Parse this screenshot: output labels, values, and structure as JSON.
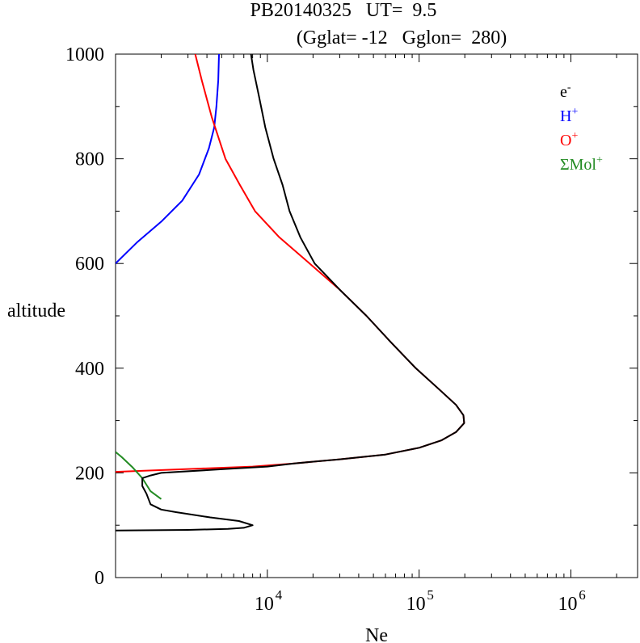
{
  "chart_data": {
    "type": "line",
    "title": "PB20140325   UT=  9.5",
    "subtitle": "(Gglat= -12   Gglon=  280)",
    "xlabel": "Ne",
    "ylabel": "altitude",
    "x_scale": "log",
    "xlim": [
      1000,
      2750000
    ],
    "ylim": [
      0,
      1000
    ],
    "y_ticks": [
      0,
      200,
      400,
      600,
      800,
      1000
    ],
    "x_ticks": [
      {
        "value": 10000,
        "base": "10",
        "exp": "4"
      },
      {
        "value": 100000,
        "base": "10",
        "exp": "5"
      },
      {
        "value": 1000000,
        "base": "10",
        "exp": "6"
      }
    ],
    "legend_placement": "top-right",
    "legend": [
      {
        "base": "e",
        "sup": "-",
        "color": "#000000"
      },
      {
        "base": "H",
        "sup": "+",
        "color": "#0000ff"
      },
      {
        "base": "O",
        "sup": "+",
        "color": "#ff0000"
      },
      {
        "base": "ΣMol",
        "sup": "+",
        "color": "#228B22"
      }
    ],
    "series": [
      {
        "color": "#0000ff",
        "points": [
          [
            1000,
            600
          ],
          [
            1380,
            640
          ],
          [
            2000,
            680
          ],
          [
            2750,
            720
          ],
          [
            3550,
            770
          ],
          [
            4120,
            820
          ],
          [
            4470,
            860
          ],
          [
            4620,
            900
          ],
          [
            4750,
            950
          ],
          [
            4800,
            1000
          ]
        ]
      },
      {
        "color": "#ff0000",
        "points": [
          [
            1000,
            202
          ],
          [
            8000,
            212
          ],
          [
            15000,
            218
          ],
          [
            30000,
            226
          ],
          [
            60000,
            235
          ],
          [
            100000,
            248
          ],
          [
            140000,
            262
          ],
          [
            175000,
            278
          ],
          [
            198000,
            295
          ],
          [
            196000,
            310
          ],
          [
            175000,
            330
          ],
          [
            135000,
            360
          ],
          [
            95000,
            400
          ],
          [
            65000,
            450
          ],
          [
            45000,
            500
          ],
          [
            30000,
            550
          ],
          [
            19000,
            600
          ],
          [
            12000,
            650
          ],
          [
            8300,
            700
          ],
          [
            6600,
            750
          ],
          [
            5300,
            800
          ],
          [
            4300,
            880
          ],
          [
            3700,
            950
          ],
          [
            3350,
            1000
          ]
        ]
      },
      {
        "color": "#228B22",
        "points": [
          [
            1000,
            240
          ],
          [
            1100,
            230
          ],
          [
            1300,
            210
          ],
          [
            1500,
            190
          ],
          [
            1700,
            165
          ],
          [
            2000,
            150
          ]
        ]
      },
      {
        "color": "#000000",
        "points": [
          [
            1000,
            90
          ],
          [
            3000,
            91
          ],
          [
            5500,
            93
          ],
          [
            7000,
            95
          ],
          [
            8000,
            100
          ],
          [
            6500,
            108
          ],
          [
            4200,
            115
          ],
          [
            2500,
            125
          ],
          [
            2000,
            130
          ],
          [
            1700,
            140
          ],
          [
            1600,
            160
          ],
          [
            1500,
            175
          ],
          [
            1500,
            190
          ],
          [
            1700,
            195
          ],
          [
            2000,
            200
          ],
          [
            5000,
            207
          ],
          [
            10000,
            212
          ],
          [
            15000,
            218
          ],
          [
            30000,
            226
          ],
          [
            60000,
            235
          ],
          [
            100000,
            248
          ],
          [
            140000,
            262
          ],
          [
            175000,
            278
          ],
          [
            198000,
            295
          ],
          [
            196000,
            310
          ],
          [
            175000,
            330
          ],
          [
            135000,
            360
          ],
          [
            95000,
            400
          ],
          [
            65000,
            450
          ],
          [
            45000,
            500
          ],
          [
            30000,
            550
          ],
          [
            20500,
            600
          ],
          [
            16500,
            650
          ],
          [
            14000,
            700
          ],
          [
            12600,
            750
          ],
          [
            11000,
            800
          ],
          [
            9700,
            860
          ],
          [
            8800,
            920
          ],
          [
            8100,
            970
          ],
          [
            7800,
            1000
          ]
        ]
      }
    ]
  }
}
